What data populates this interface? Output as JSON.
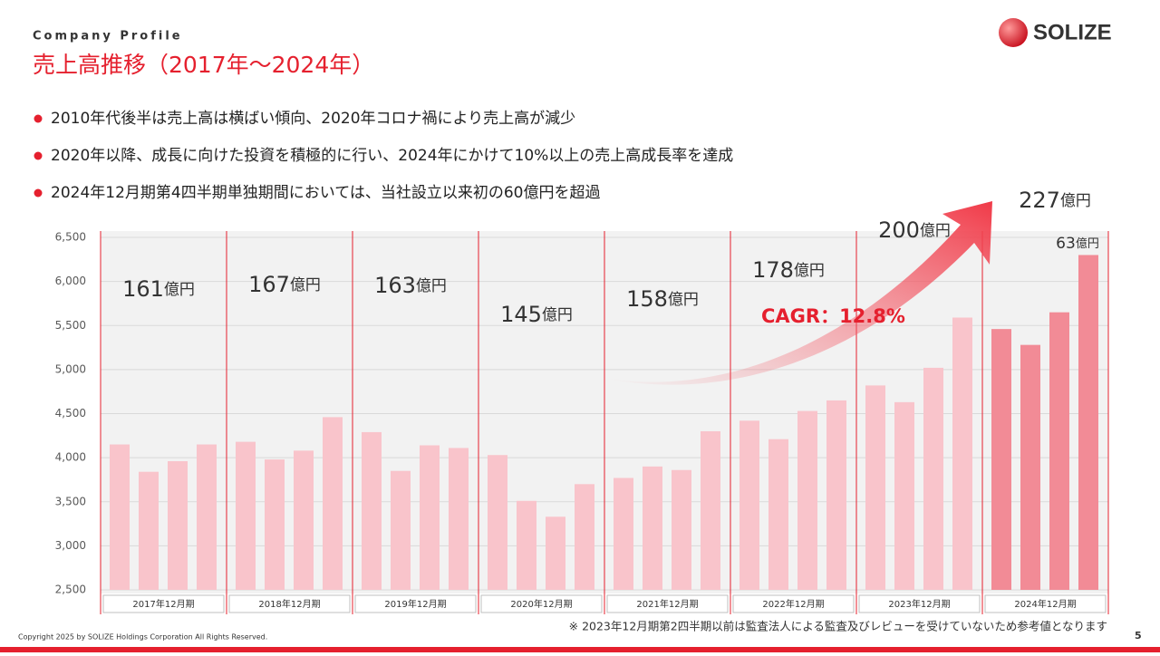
{
  "header": {
    "section": "Company Profile",
    "title": "売上高推移（2017年～2024年）",
    "logo": "SOLIZE"
  },
  "bullets": [
    "2010年代後半は売上高は横ばい傾向、2020年コロナ禍により売上高が減少",
    "2020年以降、成長に向けた投資を積極的に行い、2024年にかけて10%以上の売上高成長率を達成",
    "2024年12月期第4四半期単独期間においては、当社設立以来初の60億円を超過"
  ],
  "chart_data": {
    "type": "bar",
    "categories": [
      "2017年12月期",
      "2018年12月期",
      "2019年12月期",
      "2020年12月期",
      "2021年12月期",
      "2022年12月期",
      "2023年12月期",
      "2024年12月期"
    ],
    "quarterly_values": [
      [
        4150,
        3840,
        3960,
        4150
      ],
      [
        4180,
        3980,
        4080,
        4460
      ],
      [
        4290,
        3850,
        4140,
        4110
      ],
      [
        4030,
        3510,
        3330,
        3700
      ],
      [
        3770,
        3900,
        3860,
        4300
      ],
      [
        4420,
        4210,
        4530,
        4650
      ],
      [
        4820,
        4630,
        5020,
        5590
      ],
      [
        5460,
        5280,
        5650,
        6300
      ]
    ],
    "colors": [
      "#f9c4cb",
      "#f9c4cb",
      "#f9c4cb",
      "#f9c4cb",
      "#f9c4cb",
      "#f9c4cb",
      "#f9c4cb",
      "#f28b96"
    ],
    "annual_totals": [
      161,
      167,
      163,
      145,
      158,
      178,
      200,
      227
    ],
    "unit": "億円",
    "last_quarter_label": 63,
    "cagr": "CAGR：12.8%",
    "ylim": [
      2500,
      6500
    ],
    "yticks": [
      {
        "value": 2500,
        "label": "2,500"
      },
      {
        "value": 3000,
        "label": "3,000"
      },
      {
        "value": 3500,
        "label": "3,500"
      },
      {
        "value": 4000,
        "label": "4,000"
      },
      {
        "value": 4500,
        "label": "4,500"
      },
      {
        "value": 5000,
        "label": "5,000"
      },
      {
        "value": 5500,
        "label": "5,500"
      },
      {
        "value": 6000,
        "label": "6,000"
      },
      {
        "value": 6500,
        "label": "6,500"
      }
    ],
    "grid": true
  },
  "footer": {
    "note": "※ 2023年12月期第2四半期以前は監査法人による監査及びレビューを受けていないため参考値となります",
    "copyright": "Copyright 2025 by SOLIZE Holdings Corporation All Rights Reserved.",
    "page": "5"
  }
}
